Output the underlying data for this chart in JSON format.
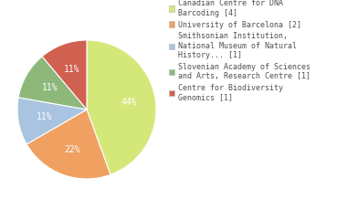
{
  "legend_labels": [
    "Canadian Centre for DNA\nBarcoding [4]",
    "University of Barcelona [2]",
    "Smithsonian Institution,\nNational Museum of Natural\nHistory... [1]",
    "Slovenian Academy of Sciences\nand Arts, Research Centre [1]",
    "Centre for Biodiversity\nGenomics [1]"
  ],
  "values": [
    4,
    2,
    1,
    1,
    1
  ],
  "colors": [
    "#d4e87a",
    "#f0a060",
    "#a8c4e0",
    "#8db87a",
    "#d06050"
  ],
  "background_color": "#ffffff",
  "text_color": "#505050",
  "pct_fontsize": 7.0,
  "legend_fontsize": 6.0
}
